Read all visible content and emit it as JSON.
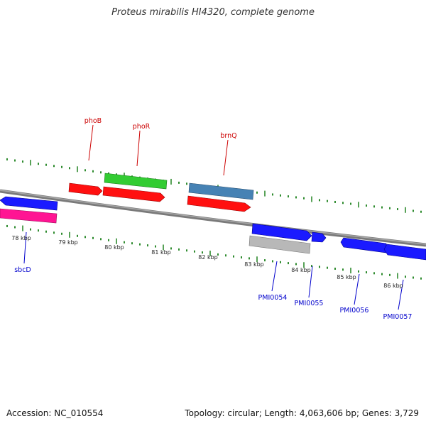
{
  "title": "Proteus mirabilis HI4320, complete genome",
  "footer": {
    "accession": "Accession: NC_010554",
    "summary": "Topology: circular; Length: 4,063,606 bp; Genes: 3,729"
  },
  "colors": {
    "backbone": "#8a8a8a",
    "ticks": "#2e8b2e",
    "forward_label": "#cc0000",
    "reverse_label": "#0000cc",
    "scale_text": "#222222"
  },
  "scale_labels": [
    "78 kbp",
    "79 kbp",
    "80 kbp",
    "81 kbp",
    "82 kbp",
    "83 kbp",
    "84 kbp",
    "85 kbp",
    "86 kbp"
  ],
  "genes": [
    {
      "id": "g-blue-a",
      "color": "#1a1aff",
      "dir": "left",
      "label": ""
    },
    {
      "id": "g-pink",
      "color": "#ff1493",
      "dir": "none",
      "label": ""
    },
    {
      "id": "g-phoB",
      "color": "#ff1010",
      "dir": "right",
      "label": "phoB"
    },
    {
      "id": "g-phoR-g",
      "color": "#33cc33",
      "dir": "none",
      "label": "phoR"
    },
    {
      "id": "g-phoR-r",
      "color": "#ff1010",
      "dir": "right",
      "label": ""
    },
    {
      "id": "g-brnQ-b",
      "color": "#4682b4",
      "dir": "none",
      "label": "brnQ"
    },
    {
      "id": "g-brnQ-r",
      "color": "#ff1010",
      "dir": "right",
      "label": ""
    },
    {
      "id": "g-pmi54",
      "color": "#1a1aff",
      "dir": "right",
      "label": "PMI0054"
    },
    {
      "id": "g-grey",
      "color": "#b8b8b8",
      "dir": "none",
      "label": ""
    },
    {
      "id": "g-pmi55",
      "color": "#1a1aff",
      "dir": "right",
      "label": "PMI0055"
    },
    {
      "id": "g-pmi56",
      "color": "#1a1aff",
      "dir": "right",
      "label": "PMI0056"
    },
    {
      "id": "g-pmi57",
      "color": "#1a1aff",
      "dir": "left",
      "label": "PMI0057"
    },
    {
      "id": "g-sbcD",
      "color": "#1a1aff",
      "dir": "none",
      "label": "sbcD"
    }
  ]
}
